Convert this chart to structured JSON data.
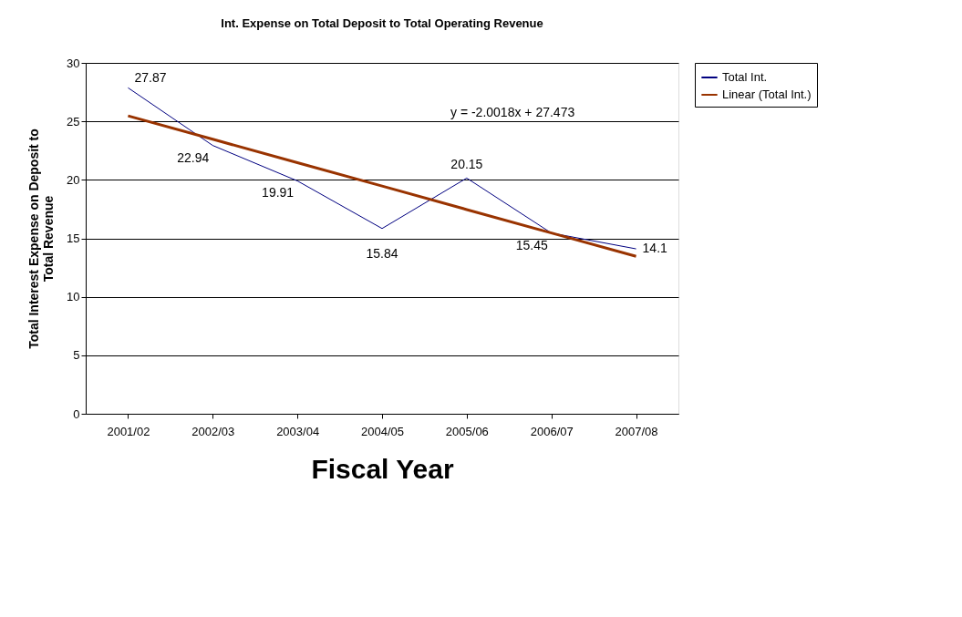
{
  "chart_data": {
    "type": "line",
    "title": "Int. Expense on Total Deposit to Total Operating Revenue",
    "xlabel": "Fiscal Year",
    "ylabel": "Total Interest Expense on Deposit to Total Revenue",
    "categories": [
      "2001/02",
      "2002/03",
      "2003/04",
      "2004/05",
      "2005/06",
      "2006/07",
      "2007/08"
    ],
    "series": [
      {
        "name": "Total Int.",
        "color": "#000080",
        "values": [
          27.87,
          22.94,
          19.91,
          15.84,
          20.15,
          15.45,
          14.1
        ],
        "value_labels": [
          "27.87",
          "22.94",
          "19.91",
          "15.84",
          "20.15",
          "15.45",
          "14.1"
        ]
      },
      {
        "name": "Linear (Total Int.)",
        "color": "#993300",
        "values": [
          25.47,
          23.47,
          21.47,
          19.47,
          17.46,
          15.46,
          13.46
        ]
      }
    ],
    "annotations": [
      "y = -2.0018x + 27.473"
    ],
    "ylim": [
      0,
      30
    ],
    "yticks": [
      0,
      5,
      10,
      15,
      20,
      25,
      30
    ],
    "grid": "y",
    "legend": "right",
    "marker": "none",
    "line_style": "solid"
  }
}
